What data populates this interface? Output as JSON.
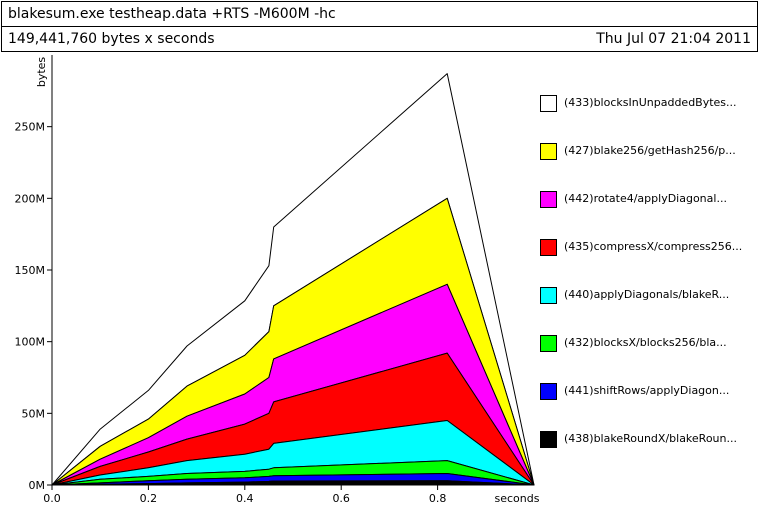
{
  "header": {
    "command": "blakesum.exe testheap.data +RTS -M600M -hc",
    "total": "149,441,760 bytes x seconds",
    "date": "Thu Jul 07 21:04 2011"
  },
  "chart_data": {
    "type": "area",
    "stacked": true,
    "xlabel": "seconds",
    "ylabel": "bytes",
    "xlim": [
      0,
      1.0
    ],
    "ylim": [
      0,
      300
    ],
    "x_ticks": [
      0.0,
      0.2,
      0.4,
      0.6,
      0.8
    ],
    "x_tick_labels": [
      "0.0",
      "0.2",
      "0.4",
      "0.6",
      "0.8"
    ],
    "y_ticks": [
      0,
      50,
      100,
      150,
      200,
      250
    ],
    "y_tick_labels": [
      "0M",
      "50M",
      "100M",
      "150M",
      "200M",
      "250M"
    ],
    "grid": false,
    "legend_position": "right",
    "x": [
      0.0,
      0.1,
      0.2,
      0.28,
      0.4,
      0.45,
      0.46,
      0.82,
      1.0
    ],
    "series": [
      {
        "name": "(438)blakeRoundX/blakeRoun...",
        "color": "#000000",
        "values": [
          0,
          0.5,
          1,
          1.5,
          2,
          2.5,
          2.8,
          3,
          0
        ]
      },
      {
        "name": "(441)shiftRows/applyDiagon...",
        "color": "#0000ff",
        "values": [
          0,
          1,
          2,
          2.5,
          3,
          3.5,
          3.7,
          5,
          0
        ]
      },
      {
        "name": "(432)blocksX/blocks256/bla...",
        "color": "#00ff00",
        "values": [
          0,
          2.5,
          3,
          4,
          4.5,
          5,
          5.5,
          9,
          0
        ]
      },
      {
        "name": "(440)applyDiagonals/blakeR...",
        "color": "#00ffff",
        "values": [
          0,
          3,
          6,
          9,
          12,
          14,
          17,
          28,
          0
        ]
      },
      {
        "name": "(435)compressX/compress256...",
        "color": "#ff0000",
        "values": [
          0,
          6,
          11,
          15,
          21,
          25,
          29,
          47,
          0
        ]
      },
      {
        "name": "(442)rotate4/applyDiagonal...",
        "color": "#ff00ff",
        "values": [
          0,
          5,
          10,
          16,
          21,
          25,
          30,
          48,
          0
        ]
      },
      {
        "name": "(427)blake256/getHash256/p...",
        "color": "#ffff00",
        "values": [
          0,
          9,
          13,
          21,
          27,
          32,
          37,
          60,
          0
        ]
      },
      {
        "name": "(433)blocksInUnpaddedBytes...",
        "color": "#ffffff",
        "values": [
          0,
          12,
          20,
          28,
          38,
          46,
          55,
          87,
          0
        ]
      }
    ]
  }
}
